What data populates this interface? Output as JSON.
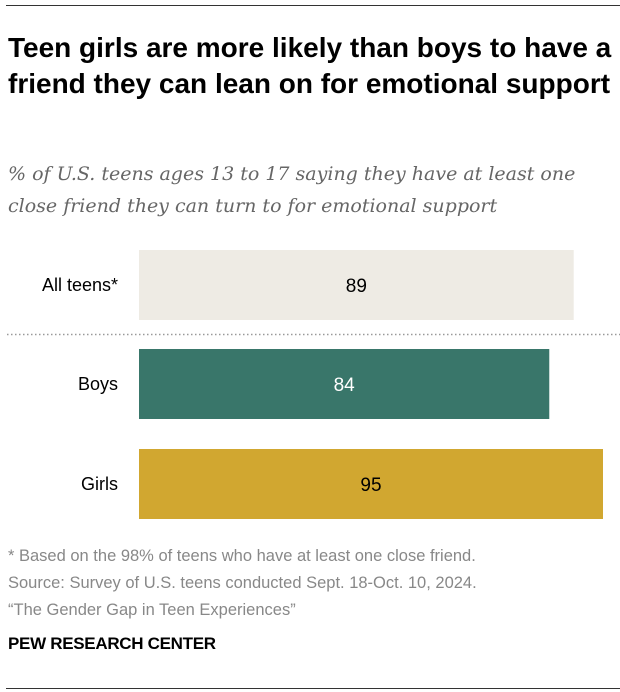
{
  "chart_data": {
    "type": "bar",
    "orientation": "horizontal",
    "title": "Teen girls are more likely than boys to have a friend they can lean on for emotional support",
    "subtitle": "% of U.S. teens ages 13 to 17 saying they have at least one close friend they can turn to for emotional support",
    "categories": [
      "All teens*",
      "Boys",
      "Girls"
    ],
    "values": [
      89,
      84,
      95
    ],
    "colors": [
      "#EEEBE4",
      "#39766A",
      "#D1A730"
    ],
    "label_colors": [
      "#000000",
      "#FFFFFF",
      "#000000"
    ],
    "xlim": [
      0,
      100
    ],
    "grid": false
  },
  "notes": [
    "* Based on the 98% of teens who have at least one close friend.",
    "Source: Survey of U.S. teens conducted Sept. 18-Oct. 10, 2024.",
    "“The Gender Gap in Teen Experiences”"
  ],
  "brand": "PEW RESEARCH CENTER"
}
